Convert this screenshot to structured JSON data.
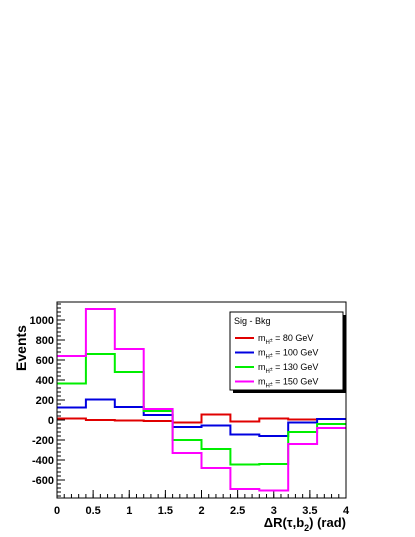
{
  "chart_data": {
    "type": "line",
    "step": true,
    "xlabel": "ΔR(τ,b",
    "xlabel_sub": "2",
    "xlabel_tail": ") (rad)",
    "ylabel": "Events",
    "xlim": [
      0,
      4
    ],
    "ylim": [
      -780,
      1180
    ],
    "x_ticks": [
      0,
      0.5,
      1,
      1.5,
      2,
      2.5,
      3,
      3.5,
      4
    ],
    "x_tick_labels": [
      "0",
      "0.5",
      "1",
      "1.5",
      "2",
      "2.5",
      "3",
      "3.5",
      "4"
    ],
    "y_ticks": [
      -600,
      -400,
      -200,
      0,
      200,
      400,
      600,
      800,
      1000
    ],
    "y_tick_labels": [
      "-600",
      "-400",
      "-200",
      "0",
      "200",
      "400",
      "600",
      "800",
      "1000"
    ],
    "bin_edges": [
      0,
      0.4,
      0.8,
      1.2,
      1.6,
      2.0,
      2.4,
      2.8,
      3.2,
      3.6,
      4.0
    ],
    "legend": {
      "header": "Sig - Bkg",
      "position": "top-right"
    },
    "series": [
      {
        "name_main": "m",
        "name_sub": "H",
        "name_sup": "±",
        "name_tail": " = 80 GeV",
        "color": "#e00000",
        "values": [
          15,
          0,
          -5,
          -10,
          -25,
          55,
          -15,
          15,
          5,
          10
        ]
      },
      {
        "name_main": "m",
        "name_sub": "H",
        "name_sup": "±",
        "name_tail": " = 100 GeV",
        "color": "#0000e0",
        "values": [
          125,
          205,
          130,
          50,
          -70,
          -55,
          -145,
          -160,
          -25,
          10
        ]
      },
      {
        "name_main": "m",
        "name_sub": "H",
        "name_sup": "±",
        "name_tail": " = 130 GeV",
        "color": "#00ee00",
        "values": [
          365,
          660,
          480,
          90,
          -200,
          -290,
          -445,
          -440,
          -120,
          -40
        ]
      },
      {
        "name_main": "m",
        "name_sub": "H",
        "name_sup": "±",
        "name_tail": " = 150 GeV",
        "color": "#ff00ff",
        "values": [
          640,
          1110,
          710,
          110,
          -330,
          -480,
          -690,
          -705,
          -240,
          -80
        ]
      }
    ]
  }
}
